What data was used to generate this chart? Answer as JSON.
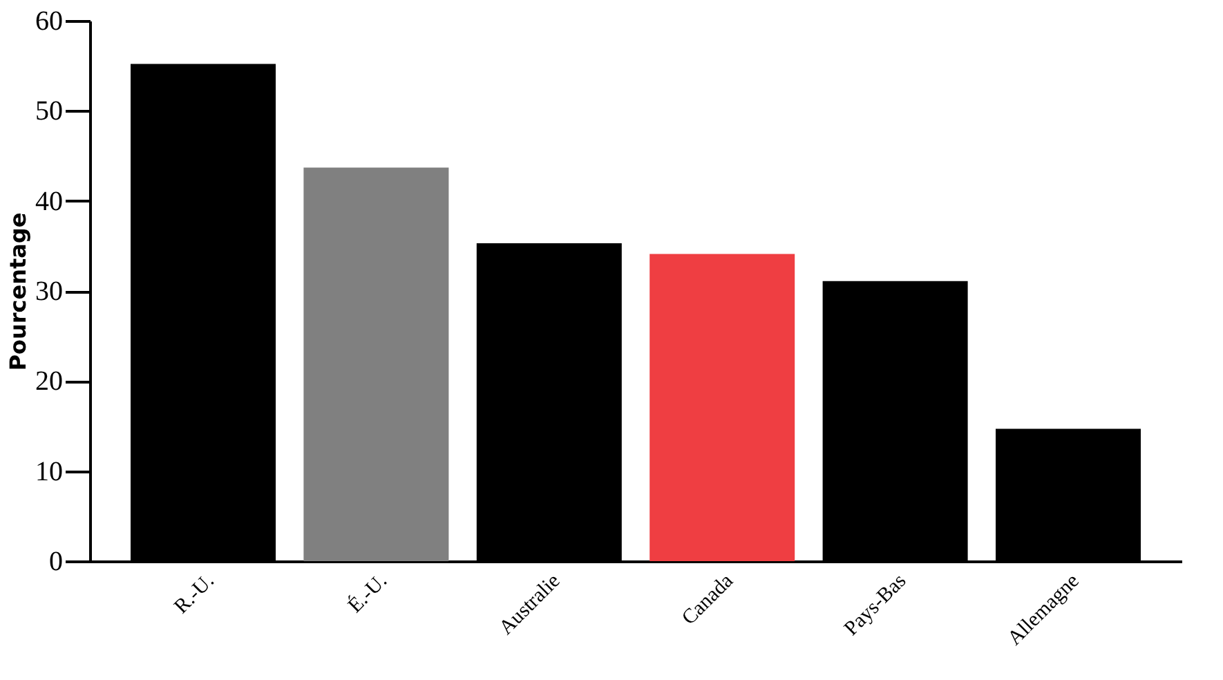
{
  "chart_data": {
    "type": "bar",
    "ylabel": "Pourcentage",
    "categories": [
      "R.-U.",
      "É.-U.",
      "Australie",
      "Canada",
      "Pays-Bas",
      "Allemagne"
    ],
    "values": [
      55.2,
      43.7,
      35.3,
      34.1,
      31.1,
      14.7
    ],
    "colors": [
      "#000000",
      "#808080",
      "#000000",
      "#ef3e42",
      "#000000",
      "#000000"
    ],
    "ylim": [
      0,
      60
    ],
    "yticks": [
      0,
      10,
      20,
      30,
      40,
      50,
      60
    ],
    "grid": false
  }
}
